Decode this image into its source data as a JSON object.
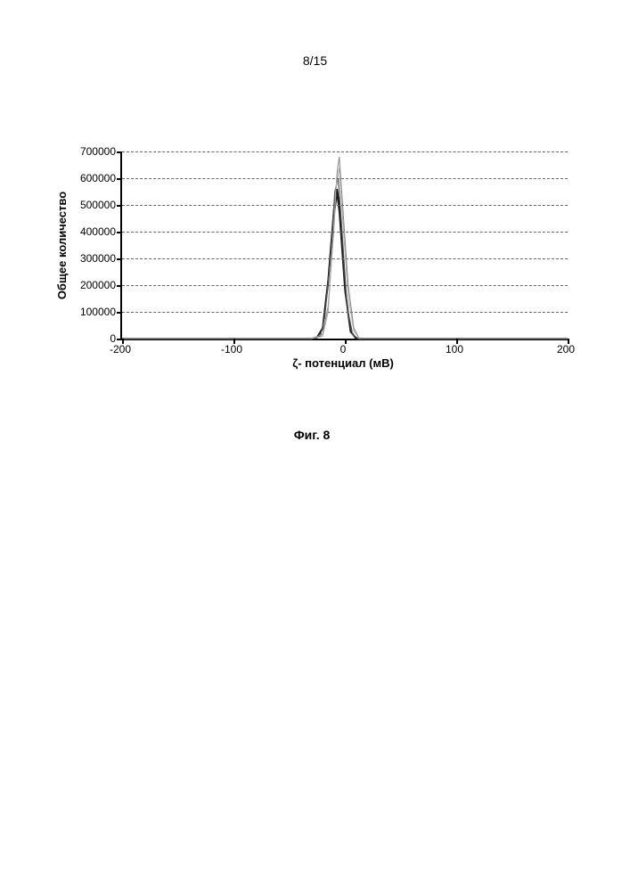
{
  "page_number_text": "8/15",
  "figure": {
    "caption": "Фиг. 8",
    "chart": {
      "type": "line",
      "x_label": "ζ- потенциал (мВ)",
      "y_label": "Общее количество",
      "xlim": [
        -200,
        200
      ],
      "ylim": [
        0,
        700000
      ],
      "x_ticks": [
        -200,
        -100,
        0,
        100,
        200
      ],
      "y_ticks": [
        0,
        100000,
        200000,
        300000,
        400000,
        500000,
        600000,
        700000
      ],
      "background_color": "#ffffff",
      "grid_color": "#666666",
      "axis_color": "#000000",
      "axis_linewidth": 2,
      "grid_dash": "4,4",
      "tick_fontsize": 12,
      "label_fontsize": 13,
      "series": [
        {
          "color": "#000000",
          "width": 1.6,
          "points": [
            [
              -200,
              0
            ],
            [
              -100,
              0
            ],
            [
              -50,
              0
            ],
            [
              -30,
              0
            ],
            [
              -25,
              5000
            ],
            [
              -20,
              40000
            ],
            [
              -15,
              220000
            ],
            [
              -10,
              480000
            ],
            [
              -7,
              560000
            ],
            [
              -5,
              500000
            ],
            [
              0,
              200000
            ],
            [
              5,
              30000
            ],
            [
              10,
              0
            ],
            [
              50,
              0
            ],
            [
              100,
              0
            ],
            [
              200,
              0
            ]
          ]
        },
        {
          "color": "#222222",
          "width": 1.4,
          "points": [
            [
              -200,
              0
            ],
            [
              -100,
              0
            ],
            [
              -50,
              0
            ],
            [
              -30,
              0
            ],
            [
              -25,
              3000
            ],
            [
              -20,
              35000
            ],
            [
              -15,
              200000
            ],
            [
              -10,
              450000
            ],
            [
              -7,
              540000
            ],
            [
              -5,
              470000
            ],
            [
              0,
              180000
            ],
            [
              5,
              25000
            ],
            [
              10,
              0
            ],
            [
              50,
              0
            ],
            [
              100,
              0
            ],
            [
              200,
              0
            ]
          ]
        },
        {
          "color": "#555555",
          "width": 1.2,
          "points": [
            [
              -200,
              0
            ],
            [
              -100,
              0
            ],
            [
              -50,
              0
            ],
            [
              -30,
              0
            ],
            [
              -22,
              10000
            ],
            [
              -18,
              80000
            ],
            [
              -13,
              300000
            ],
            [
              -9,
              550000
            ],
            [
              -6,
              600000
            ],
            [
              -3,
              430000
            ],
            [
              2,
              120000
            ],
            [
              7,
              15000
            ],
            [
              12,
              0
            ],
            [
              50,
              0
            ],
            [
              100,
              0
            ],
            [
              200,
              0
            ]
          ]
        },
        {
          "color": "#888888",
          "width": 1.0,
          "points": [
            [
              -200,
              0
            ],
            [
              -100,
              0
            ],
            [
              -50,
              0
            ],
            [
              -30,
              0
            ],
            [
              -20,
              15000
            ],
            [
              -15,
              120000
            ],
            [
              -10,
              400000
            ],
            [
              -7,
              620000
            ],
            [
              -5,
              680000
            ],
            [
              -2,
              500000
            ],
            [
              3,
              200000
            ],
            [
              8,
              40000
            ],
            [
              13,
              0
            ],
            [
              50,
              0
            ],
            [
              100,
              0
            ],
            [
              200,
              0
            ]
          ]
        },
        {
          "color": "#aaaaaa",
          "width": 1.0,
          "points": [
            [
              -200,
              0
            ],
            [
              -100,
              0
            ],
            [
              -50,
              0
            ],
            [
              -30,
              0
            ],
            [
              -20,
              8000
            ],
            [
              -15,
              100000
            ],
            [
              -11,
              350000
            ],
            [
              -8,
              560000
            ],
            [
              -5,
              640000
            ],
            [
              -2,
              450000
            ],
            [
              3,
              160000
            ],
            [
              8,
              30000
            ],
            [
              13,
              0
            ],
            [
              50,
              0
            ],
            [
              100,
              0
            ],
            [
              200,
              0
            ]
          ]
        }
      ]
    }
  }
}
